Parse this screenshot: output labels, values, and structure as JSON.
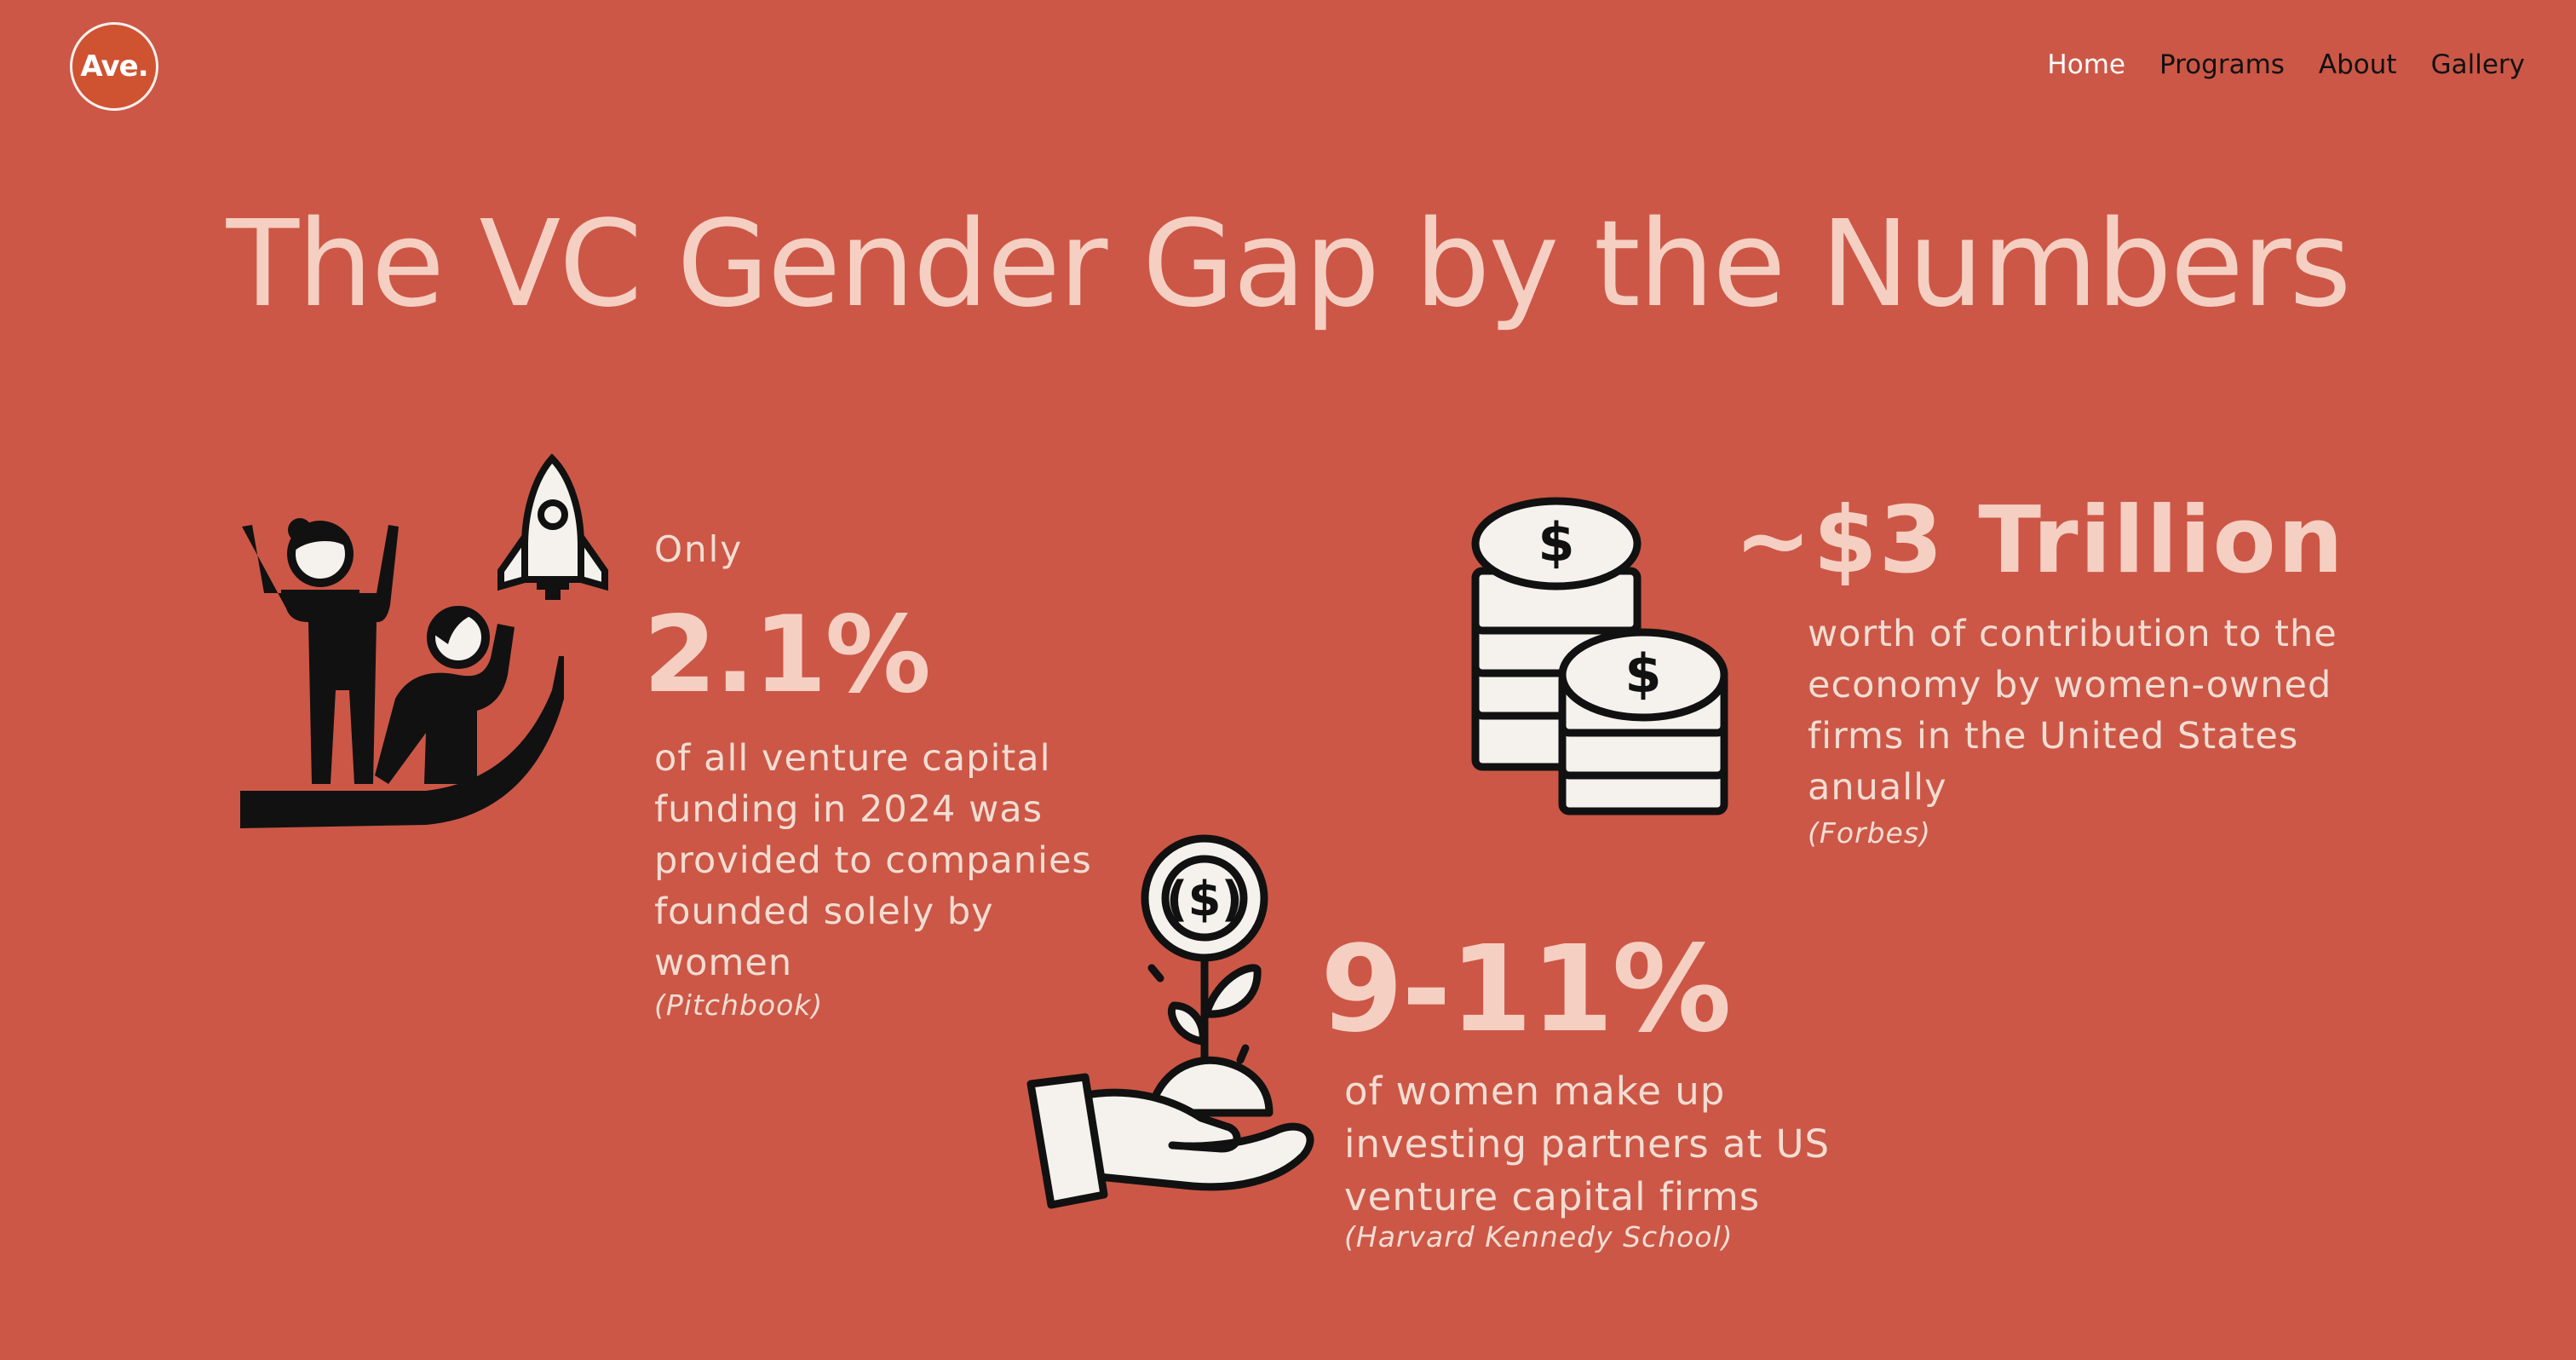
{
  "header": {
    "logo_text": "Ave.",
    "nav": [
      {
        "label": "Home",
        "active": true
      },
      {
        "label": "Programs",
        "active": false
      },
      {
        "label": "About",
        "active": false
      },
      {
        "label": "Gallery",
        "active": false
      }
    ]
  },
  "page": {
    "title": "The VC Gender Gap by the Numbers"
  },
  "stats": {
    "funding": {
      "prefix": "Only",
      "value": "2.1%",
      "description": "of all venture capital funding in 2024 was provided to companies founded solely by women",
      "source": "(Pitchbook)",
      "icon": "rocket-founders-icon"
    },
    "economy": {
      "value": "~$3 Trillion",
      "description": "worth of contribution to the economy by women-owned firms in the United States anually",
      "source": "(Forbes)",
      "icon": "coin-stacks-icon"
    },
    "partners": {
      "value": "9-11%",
      "description": "of women make up investing partners at US venture capital firms",
      "source": "(Harvard Kennedy School)",
      "icon": "hand-money-plant-icon"
    }
  },
  "colors": {
    "background": "#cc5746",
    "headline": "#f6cfc3",
    "body_text": "#f2ddd3",
    "logo_fill": "#cf5231"
  }
}
